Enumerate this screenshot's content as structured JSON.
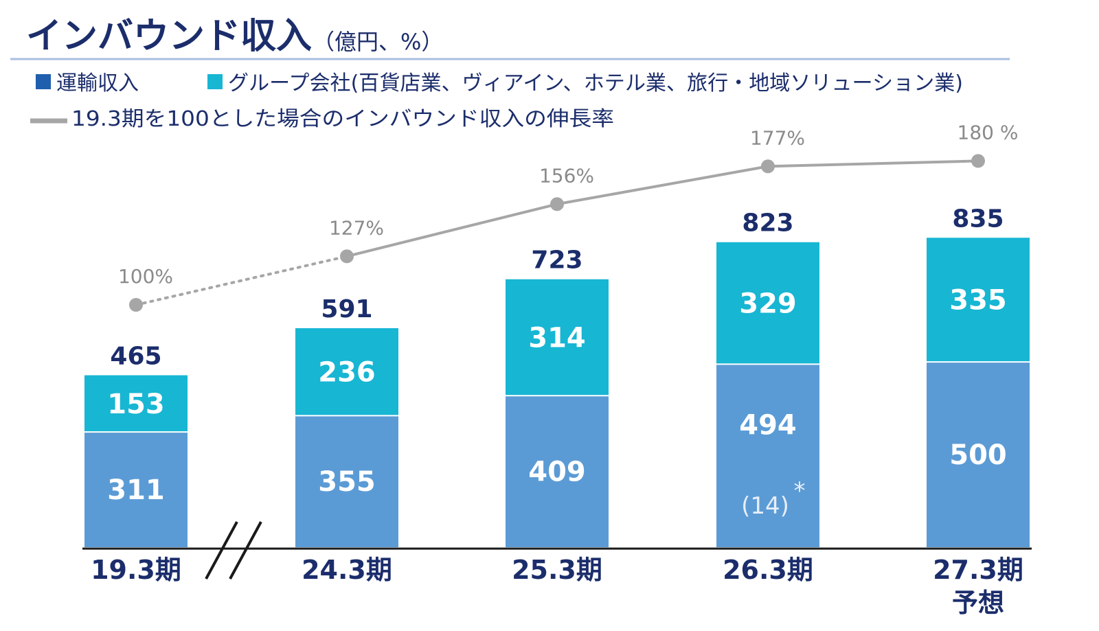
{
  "title": "インバウンド収入",
  "unit": "（億円、%）",
  "colors": {
    "title": "#1b2d6b",
    "rule": "#a8bfe2",
    "transport": "#5b9bd5",
    "group": "#17b6d3",
    "legend_transport": "#1f5fae",
    "line": "#a6a6a6",
    "axis": "#1a1a1a"
  },
  "legend": {
    "transport": "運輸収入",
    "group": "グループ会社(百貨店業、ヴィアイン、ホテル業、旅行・地域ソリューション業)",
    "line": "19.3期を100とした場合のインバウンド収入の伸長率"
  },
  "chart_data": {
    "type": "bar",
    "stacked": true,
    "categories": [
      "19.3期",
      "24.3期",
      "25.3期",
      "26.3期",
      "27.3期\n予想"
    ],
    "series": [
      {
        "name": "運輸収入",
        "values": [
          311,
          355,
          409,
          494,
          500
        ]
      },
      {
        "name": "グループ会社(百貨店業、ヴィアイン、ホテル業、旅行・地域ソリューション業)",
        "values": [
          153,
          236,
          314,
          329,
          335
        ]
      }
    ],
    "totals": [
      465,
      591,
      723,
      823,
      835
    ],
    "growth_line": {
      "name": "19.3期を100とした場合のインバウンド収入の伸長率",
      "values": [
        100,
        127,
        156,
        177,
        180
      ],
      "labels": [
        "100%",
        "127%",
        "156%",
        "177%",
        "180 %"
      ],
      "first_segment_dotted": true
    },
    "annotations": [
      {
        "category_index": 3,
        "text": "(14)",
        "marker": "*"
      }
    ],
    "axis_break_between": [
      0,
      1
    ],
    "ylim": [
      0,
      900
    ],
    "grid": false,
    "legend_position": "top-left"
  }
}
